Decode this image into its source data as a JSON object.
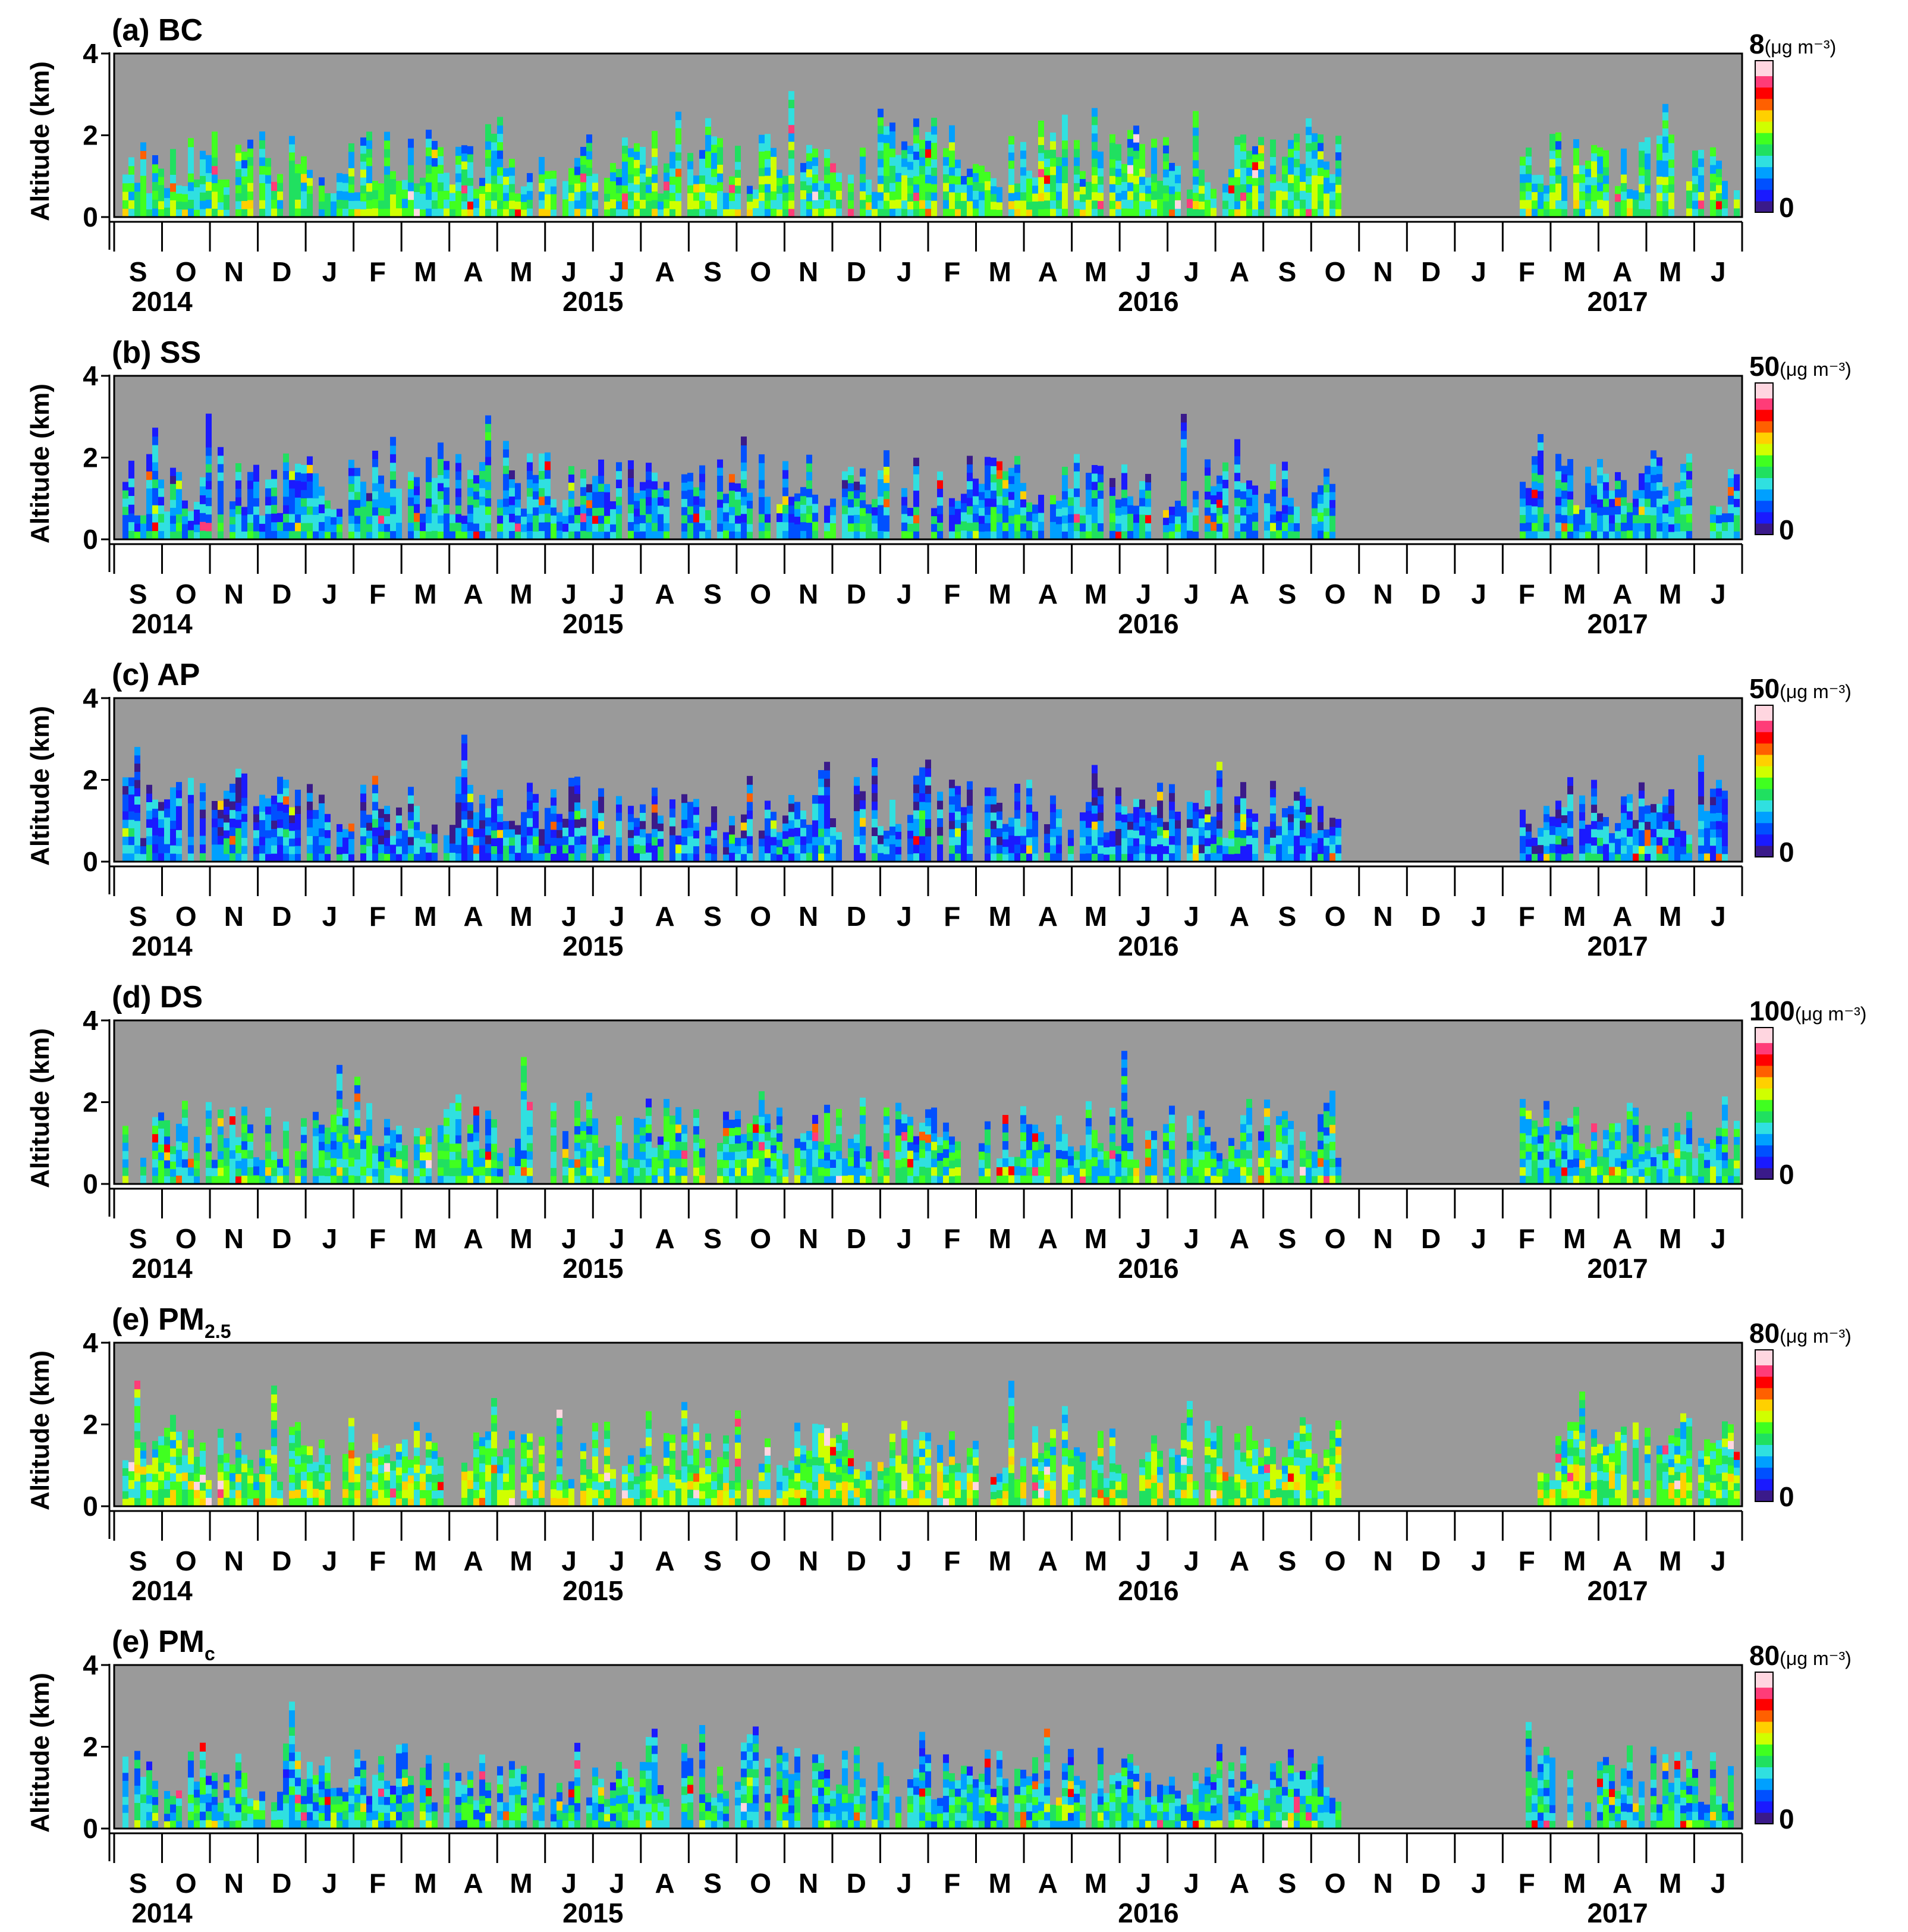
{
  "chart_data": {
    "type": "heatmap",
    "description_units": "Altitude (km) vs. time (Sep 2014 – Jun 2017), colour = concentration",
    "ylabel": "Altitude (km)",
    "ylim": [
      0,
      4
    ],
    "y_ticks": [
      "0",
      "2",
      "4"
    ],
    "month_labels": [
      "S",
      "O",
      "N",
      "D",
      "J",
      "F",
      "M",
      "A",
      "M",
      "J",
      "J",
      "A",
      "S",
      "O",
      "N",
      "D",
      "J",
      "F",
      "M",
      "A",
      "M",
      "J",
      "J",
      "A",
      "S",
      "O",
      "N",
      "D",
      "J",
      "F",
      "M",
      "A",
      "M",
      "J"
    ],
    "year_labels": [
      "2014",
      "2015",
      "2016",
      "2017"
    ],
    "colorbar_min_label": "0",
    "unit_label": "(μg m⁻³)",
    "colors": {
      "background_gray": "#9a9a9a",
      "colormap": [
        "#3a1a8a",
        "#1a1aff",
        "#0050ff",
        "#00a0ff",
        "#30e0e0",
        "#20e060",
        "#40ff20",
        "#d0ff00",
        "#ffd000",
        "#ff6000",
        "#ff0000",
        "#ff3c78",
        "#ffd6e0"
      ]
    },
    "panels": [
      {
        "title_prefix": "(a) BC",
        "title_sub": "",
        "vmax": 8,
        "vmax_label": "8",
        "level": 0.35
      },
      {
        "title_prefix": "(b) SS",
        "title_sub": "",
        "vmax": 50,
        "vmax_label": "50",
        "level": 0.22
      },
      {
        "title_prefix": "(c) AP",
        "title_sub": "",
        "vmax": 50,
        "vmax_label": "50",
        "level": 0.15
      },
      {
        "title_prefix": "(d) DS",
        "title_sub": "",
        "vmax": 100,
        "vmax_label": "100",
        "level": 0.3
      },
      {
        "title_prefix": "(e) PM",
        "title_sub": "2.5",
        "vmax": 80,
        "vmax_label": "80",
        "level": 0.4
      },
      {
        "title_prefix": "(e) PM",
        "title_sub": "c",
        "vmax": 80,
        "vmax_label": "80",
        "level": 0.28
      }
    ]
  }
}
